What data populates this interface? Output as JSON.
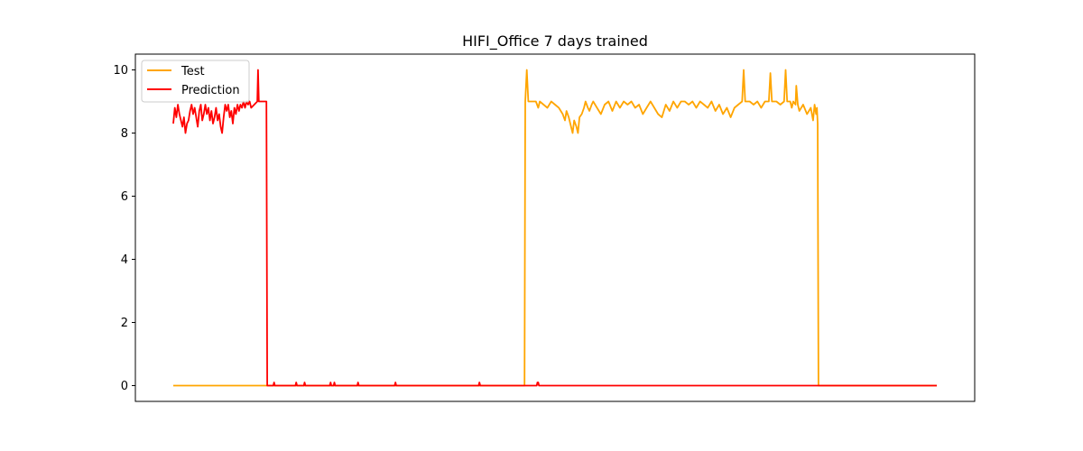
{
  "chart_data": {
    "type": "line",
    "title": "HIFI_Office 7 days trained",
    "xlabel": "",
    "ylabel": "",
    "xlim": [
      0,
      1000
    ],
    "ylim": [
      -0.5,
      10.5
    ],
    "yticks": [
      0,
      2,
      4,
      6,
      8,
      10
    ],
    "xticks": [],
    "grid": false,
    "legend": {
      "placement": "top-left"
    },
    "series": [
      {
        "name": "Test",
        "color": "#FFA500",
        "points": [
          [
            0,
            0
          ],
          [
            460,
            0
          ],
          [
            461,
            9
          ],
          [
            463,
            10
          ],
          [
            465,
            9
          ],
          [
            470,
            9
          ],
          [
            475,
            9
          ],
          [
            478,
            8.8
          ],
          [
            480,
            9
          ],
          [
            485,
            8.9
          ],
          [
            490,
            8.8
          ],
          [
            495,
            9
          ],
          [
            500,
            8.9
          ],
          [
            505,
            8.8
          ],
          [
            510,
            8.6
          ],
          [
            513,
            8.4
          ],
          [
            515,
            8.7
          ],
          [
            518,
            8.5
          ],
          [
            520,
            8.3
          ],
          [
            523,
            8
          ],
          [
            525,
            8.4
          ],
          [
            528,
            8.2
          ],
          [
            530,
            8
          ],
          [
            532,
            8.5
          ],
          [
            535,
            8.6
          ],
          [
            538,
            8.8
          ],
          [
            540,
            9
          ],
          [
            543,
            8.8
          ],
          [
            545,
            8.7
          ],
          [
            548,
            8.9
          ],
          [
            550,
            9
          ],
          [
            555,
            8.8
          ],
          [
            560,
            8.6
          ],
          [
            565,
            8.9
          ],
          [
            570,
            9
          ],
          [
            575,
            8.7
          ],
          [
            580,
            9
          ],
          [
            585,
            8.8
          ],
          [
            590,
            9
          ],
          [
            595,
            8.9
          ],
          [
            600,
            9
          ],
          [
            605,
            8.8
          ],
          [
            610,
            8.9
          ],
          [
            615,
            8.6
          ],
          [
            620,
            8.8
          ],
          [
            625,
            9
          ],
          [
            630,
            8.8
          ],
          [
            635,
            8.6
          ],
          [
            640,
            8.5
          ],
          [
            645,
            8.9
          ],
          [
            650,
            8.7
          ],
          [
            655,
            9
          ],
          [
            660,
            8.8
          ],
          [
            665,
            9
          ],
          [
            670,
            9
          ],
          [
            675,
            8.9
          ],
          [
            680,
            9
          ],
          [
            685,
            8.8
          ],
          [
            690,
            9
          ],
          [
            695,
            8.9
          ],
          [
            700,
            8.8
          ],
          [
            705,
            9
          ],
          [
            710,
            8.7
          ],
          [
            715,
            8.9
          ],
          [
            720,
            8.6
          ],
          [
            725,
            8.8
          ],
          [
            730,
            8.5
          ],
          [
            735,
            8.8
          ],
          [
            740,
            8.9
          ],
          [
            745,
            9
          ],
          [
            747,
            10
          ],
          [
            749,
            9
          ],
          [
            755,
            9
          ],
          [
            760,
            8.9
          ],
          [
            765,
            9
          ],
          [
            770,
            8.8
          ],
          [
            775,
            9
          ],
          [
            780,
            9
          ],
          [
            782,
            9.9
          ],
          [
            784,
            9
          ],
          [
            790,
            9
          ],
          [
            795,
            8.9
          ],
          [
            800,
            9
          ],
          [
            802,
            10
          ],
          [
            804,
            9
          ],
          [
            808,
            9
          ],
          [
            810,
            8.8
          ],
          [
            812,
            9
          ],
          [
            815,
            8.9
          ],
          [
            816,
            9.5
          ],
          [
            818,
            8.9
          ],
          [
            820,
            8.7
          ],
          [
            825,
            8.9
          ],
          [
            830,
            8.6
          ],
          [
            835,
            8.8
          ],
          [
            838,
            8.4
          ],
          [
            840,
            8.9
          ],
          [
            842,
            8.6
          ],
          [
            843,
            8.8
          ],
          [
            844,
            8.3
          ],
          [
            845,
            0
          ],
          [
            1000,
            0
          ]
        ]
      },
      {
        "name": "Prediction",
        "color": "#FF0000",
        "points": [
          [
            0,
            8.3
          ],
          [
            2,
            8.8
          ],
          [
            4,
            8.5
          ],
          [
            6,
            8.9
          ],
          [
            8,
            8.6
          ],
          [
            10,
            8.4
          ],
          [
            12,
            8.2
          ],
          [
            14,
            8.5
          ],
          [
            16,
            8
          ],
          [
            18,
            8.3
          ],
          [
            20,
            8.4
          ],
          [
            22,
            8.7
          ],
          [
            24,
            8.9
          ],
          [
            26,
            8.6
          ],
          [
            28,
            8.8
          ],
          [
            30,
            8.5
          ],
          [
            32,
            8.2
          ],
          [
            34,
            8.7
          ],
          [
            36,
            8.9
          ],
          [
            38,
            8.4
          ],
          [
            40,
            8.6
          ],
          [
            42,
            8.9
          ],
          [
            44,
            8.6
          ],
          [
            46,
            8.8
          ],
          [
            48,
            8.4
          ],
          [
            50,
            8.7
          ],
          [
            52,
            8.3
          ],
          [
            54,
            8.5
          ],
          [
            56,
            8.8
          ],
          [
            58,
            8.4
          ],
          [
            60,
            8.6
          ],
          [
            62,
            8.2
          ],
          [
            64,
            8
          ],
          [
            66,
            8.5
          ],
          [
            68,
            8.9
          ],
          [
            70,
            8.7
          ],
          [
            72,
            8.9
          ],
          [
            74,
            8.5
          ],
          [
            76,
            8.7
          ],
          [
            78,
            8.3
          ],
          [
            80,
            8.8
          ],
          [
            82,
            8.6
          ],
          [
            84,
            8.9
          ],
          [
            86,
            8.7
          ],
          [
            88,
            8.9
          ],
          [
            90,
            8.8
          ],
          [
            92,
            9
          ],
          [
            94,
            8.8
          ],
          [
            96,
            9
          ],
          [
            98,
            8.9
          ],
          [
            100,
            9
          ],
          [
            102,
            8.8
          ],
          [
            110,
            9
          ],
          [
            111,
            10
          ],
          [
            112,
            9
          ],
          [
            118,
            9
          ],
          [
            122,
            9
          ],
          [
            123,
            0
          ],
          [
            131,
            0
          ],
          [
            132,
            0.1
          ],
          [
            133,
            0
          ],
          [
            160,
            0
          ],
          [
            161,
            0.1
          ],
          [
            162,
            0
          ],
          [
            171,
            0
          ],
          [
            172,
            0.1
          ],
          [
            173,
            0
          ],
          [
            205,
            0
          ],
          [
            206,
            0.1
          ],
          [
            207,
            0
          ],
          [
            210,
            0
          ],
          [
            211,
            0.1
          ],
          [
            212,
            0
          ],
          [
            241,
            0
          ],
          [
            242,
            0.1
          ],
          [
            243,
            0
          ],
          [
            290,
            0
          ],
          [
            291,
            0.1
          ],
          [
            292,
            0
          ],
          [
            400,
            0
          ],
          [
            401,
            0.1
          ],
          [
            402,
            0
          ],
          [
            476,
            0
          ],
          [
            477,
            0.1
          ],
          [
            478,
            0.1
          ],
          [
            479,
            0
          ],
          [
            1000,
            0
          ]
        ]
      }
    ]
  }
}
